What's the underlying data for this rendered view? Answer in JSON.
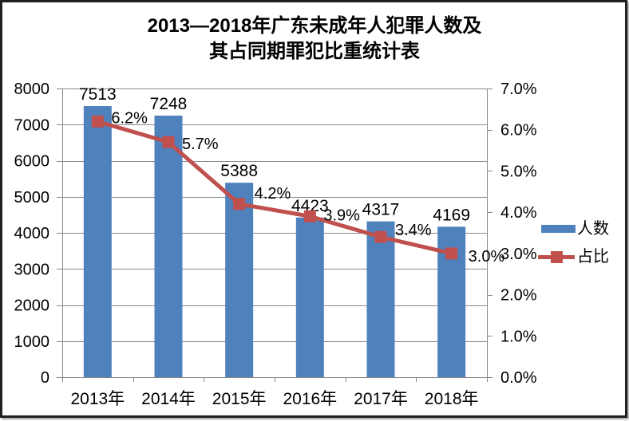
{
  "figure": {
    "title_line1": "2013—2018年广东未成年人犯罪人数及",
    "title_line2": "其占同期罪犯比重统计表"
  },
  "chart_data": {
    "type": "bar",
    "subtype": "bar-line-combo",
    "title": "2013—2018年广东未成年人犯罪人数及其占同期罪犯比重统计表",
    "categories": [
      "2013年",
      "2014年",
      "2015年",
      "2016年",
      "2017年",
      "2018年"
    ],
    "series": [
      {
        "name": "人数",
        "type": "bar",
        "axis": "left",
        "color": "#4F81BD",
        "values": [
          7513,
          7248,
          5388,
          4423,
          4317,
          4169
        ],
        "data_labels": [
          "7513",
          "7248",
          "5388",
          "4423",
          "4317",
          "4169"
        ]
      },
      {
        "name": "占比",
        "type": "line",
        "axis": "right",
        "color": "#C0504D",
        "values": [
          6.2,
          5.7,
          4.2,
          3.9,
          3.4,
          3.0
        ],
        "data_labels": [
          "6.2%",
          "5.7%",
          "4.2%",
          "3.9%",
          "3.4%",
          "3.0%"
        ]
      }
    ],
    "left_axis": {
      "min": 0,
      "max": 8000,
      "step": 1000,
      "tick_labels": [
        "0",
        "1000",
        "2000",
        "3000",
        "4000",
        "5000",
        "6000",
        "7000",
        "8000"
      ]
    },
    "right_axis": {
      "min": 0,
      "max": 7,
      "step": 1,
      "tick_labels": [
        "0.0%",
        "1.0%",
        "2.0%",
        "3.0%",
        "4.0%",
        "5.0%",
        "6.0%",
        "7.0%"
      ]
    },
    "legend": {
      "position": "right",
      "items": [
        {
          "label": "人数",
          "swatch": "bar"
        },
        {
          "label": "占比",
          "swatch": "line-marker"
        }
      ]
    },
    "grid": "horizontal-major-only",
    "colors": {
      "bar": "#4F81BD",
      "line": "#C0504D",
      "gridline": "#888888",
      "axis": "#888888",
      "text": "#000000",
      "background": "#FFFFFF"
    }
  }
}
